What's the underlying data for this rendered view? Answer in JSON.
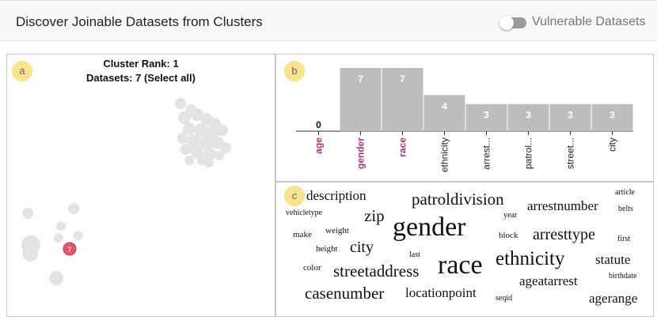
{
  "header": {
    "title": "Discover Joinable Datasets from Clusters",
    "toggle_label": "Vulnerable Datasets"
  },
  "panel_a": {
    "badge": "a",
    "cluster_rank": "Cluster Rank: 1",
    "datasets": "Datasets: 7 (Select all)",
    "selected_point_label": "7"
  },
  "panel_b": {
    "badge": "b"
  },
  "panel_c": {
    "badge": "c"
  },
  "colors": {
    "bar": "#bdbdbd",
    "highlight": "#a3357d",
    "selected_point": "#e0566a",
    "badge": "#f8e38e",
    "points": "#e3e3e3"
  },
  "chart_data": {
    "type": "bar",
    "categories": [
      "age",
      "gender",
      "race",
      "ethnicity",
      "arrest...",
      "patrol...",
      "street...",
      "city"
    ],
    "values": [
      0,
      7,
      7,
      4,
      3,
      3,
      3,
      3
    ],
    "highlighted": [
      "age",
      "gender",
      "race"
    ],
    "ylim": [
      0,
      7
    ]
  },
  "word_cloud": [
    "description",
    "patroldivision",
    "article",
    "vehicletype",
    "zip",
    "year",
    "arrestnumber",
    "belts",
    "gender",
    "make",
    "weight",
    "block",
    "arresttype",
    "first",
    "height",
    "city",
    "last",
    "race",
    "ethnicity",
    "statute",
    "color",
    "streetaddress",
    "ageatarrest",
    "birthdate",
    "casenumber",
    "locationpoint",
    "seqid",
    "agerange"
  ]
}
